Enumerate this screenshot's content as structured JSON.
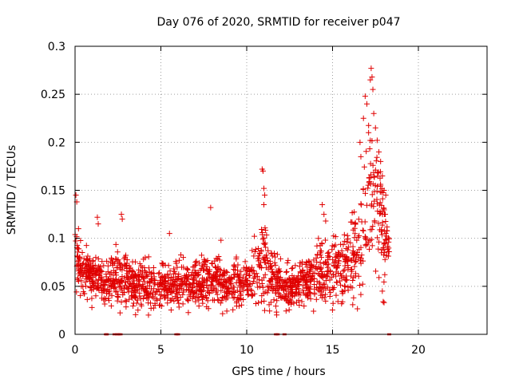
{
  "chart_data": {
    "type": "scatter",
    "title": "Day 076 of 2020, SRMTID for receiver p047",
    "xlabel": "GPS time / hours",
    "ylabel": "SRMTID / TECUs",
    "xlim": [
      0,
      24
    ],
    "ylim": [
      0,
      0.3
    ],
    "x_ticks": [
      0,
      5,
      10,
      15,
      20
    ],
    "x_tick_labels": [
      "0",
      "5",
      "10",
      "15",
      "20"
    ],
    "y_ticks": [
      0,
      0.05,
      0.1,
      0.15,
      0.2,
      0.25,
      0.3
    ],
    "y_tick_labels": [
      "0",
      "0.05",
      "0.1",
      "0.15",
      "0.2",
      "0.25",
      "0.3"
    ],
    "grid": true,
    "marker": "+",
    "color": "#e00000",
    "envelope": {
      "description": "approximate mean and spread of the dense SRMTID point cloud by hour",
      "hours": [
        0,
        0.5,
        1,
        1.5,
        2,
        2.5,
        3,
        3.5,
        4,
        5,
        6,
        7,
        8,
        9,
        10,
        10.5,
        11,
        11.5,
        12,
        13,
        14,
        14.5,
        15,
        15.5,
        16,
        16.5,
        17,
        17.5,
        18,
        18.3
      ],
      "mean": [
        0.08,
        0.065,
        0.06,
        0.055,
        0.055,
        0.06,
        0.055,
        0.05,
        0.055,
        0.05,
        0.05,
        0.055,
        0.055,
        0.05,
        0.055,
        0.065,
        0.075,
        0.06,
        0.05,
        0.05,
        0.06,
        0.065,
        0.065,
        0.07,
        0.075,
        0.09,
        0.13,
        0.15,
        0.11,
        0.09
      ],
      "spread": [
        0.03,
        0.025,
        0.02,
        0.02,
        0.02,
        0.025,
        0.02,
        0.02,
        0.022,
        0.02,
        0.02,
        0.022,
        0.022,
        0.02,
        0.022,
        0.03,
        0.035,
        0.025,
        0.02,
        0.02,
        0.025,
        0.03,
        0.03,
        0.03,
        0.035,
        0.05,
        0.07,
        0.06,
        0.04,
        0.02
      ],
      "point_count": 1700
    },
    "outliers": [
      {
        "x": 0.05,
        "y": 0.145
      },
      {
        "x": 0.1,
        "y": 0.138
      },
      {
        "x": 0.2,
        "y": 0.11
      },
      {
        "x": 1.3,
        "y": 0.122
      },
      {
        "x": 1.35,
        "y": 0.115
      },
      {
        "x": 2.7,
        "y": 0.125
      },
      {
        "x": 2.75,
        "y": 0.12
      },
      {
        "x": 5.5,
        "y": 0.105
      },
      {
        "x": 7.9,
        "y": 0.132
      },
      {
        "x": 8.5,
        "y": 0.098
      },
      {
        "x": 10.9,
        "y": 0.172
      },
      {
        "x": 10.95,
        "y": 0.17
      },
      {
        "x": 11.0,
        "y": 0.152
      },
      {
        "x": 11.05,
        "y": 0.145
      },
      {
        "x": 11.0,
        "y": 0.135
      },
      {
        "x": 14.4,
        "y": 0.135
      },
      {
        "x": 14.5,
        "y": 0.125
      },
      {
        "x": 14.6,
        "y": 0.118
      },
      {
        "x": 16.6,
        "y": 0.2
      },
      {
        "x": 16.65,
        "y": 0.185
      },
      {
        "x": 16.8,
        "y": 0.225
      },
      {
        "x": 16.9,
        "y": 0.248
      },
      {
        "x": 17.0,
        "y": 0.24
      },
      {
        "x": 17.1,
        "y": 0.21
      },
      {
        "x": 17.2,
        "y": 0.265
      },
      {
        "x": 17.25,
        "y": 0.277
      },
      {
        "x": 17.3,
        "y": 0.268
      },
      {
        "x": 17.35,
        "y": 0.255
      },
      {
        "x": 17.4,
        "y": 0.23
      },
      {
        "x": 17.5,
        "y": 0.215
      },
      {
        "x": 17.6,
        "y": 0.202
      },
      {
        "x": 17.7,
        "y": 0.19
      },
      {
        "x": 17.8,
        "y": 0.18
      },
      {
        "x": 17.9,
        "y": 0.165
      },
      {
        "x": 18.0,
        "y": 0.15
      },
      {
        "x": 18.1,
        "y": 0.145
      },
      {
        "x": 17.9,
        "y": 0.045
      },
      {
        "x": 18.0,
        "y": 0.033
      },
      {
        "x": 17.95,
        "y": 0.034
      }
    ],
    "zero_markers_x": [
      1.8,
      1.85,
      2.3,
      2.45,
      2.55,
      2.65,
      5.9,
      6.0,
      11.7,
      11.8,
      12.2,
      18.3
    ]
  }
}
